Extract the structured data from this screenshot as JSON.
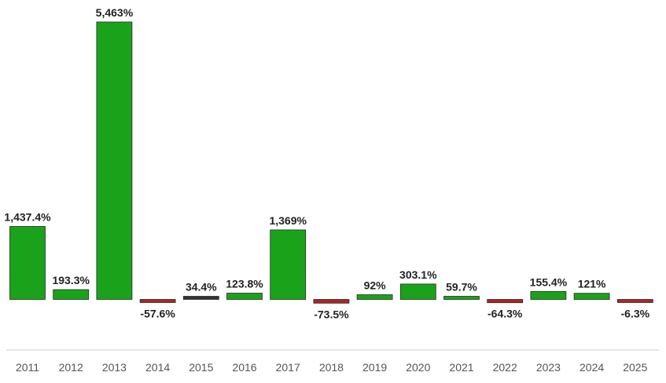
{
  "chart_data": {
    "type": "bar",
    "categories": [
      "2011",
      "2012",
      "2013",
      "2014",
      "2015",
      "2016",
      "2017",
      "2018",
      "2019",
      "2020",
      "2021",
      "2022",
      "2023",
      "2024",
      "2025"
    ],
    "values": [
      1437.4,
      193.3,
      5463,
      -57.6,
      34.4,
      123.8,
      1369,
      -73.5,
      92,
      303.1,
      59.7,
      -64.3,
      155.4,
      121,
      -6.3
    ],
    "labels": [
      "1,437.4%",
      "193.3%",
      "5,463%",
      "-57.6%",
      "34.4%",
      "123.8%",
      "1,369%",
      "-73.5%",
      "92%",
      "303.1%",
      "59.7%",
      "-64.3%",
      "155.4%",
      "121%",
      "-6.3%"
    ],
    "bar_colors": [
      "#1aa31a",
      "#1aa31a",
      "#1aa31a",
      "#b22222",
      "#333333",
      "#1aa31a",
      "#1aa31a",
      "#b22222",
      "#1aa31a",
      "#1aa31a",
      "#1aa31a",
      "#b22222",
      "#1aa31a",
      "#1aa31a",
      "#b22222"
    ],
    "title": "",
    "xlabel": "",
    "ylabel": "",
    "ylim": [
      -150,
      5463
    ],
    "grid": false,
    "legend": "none"
  }
}
